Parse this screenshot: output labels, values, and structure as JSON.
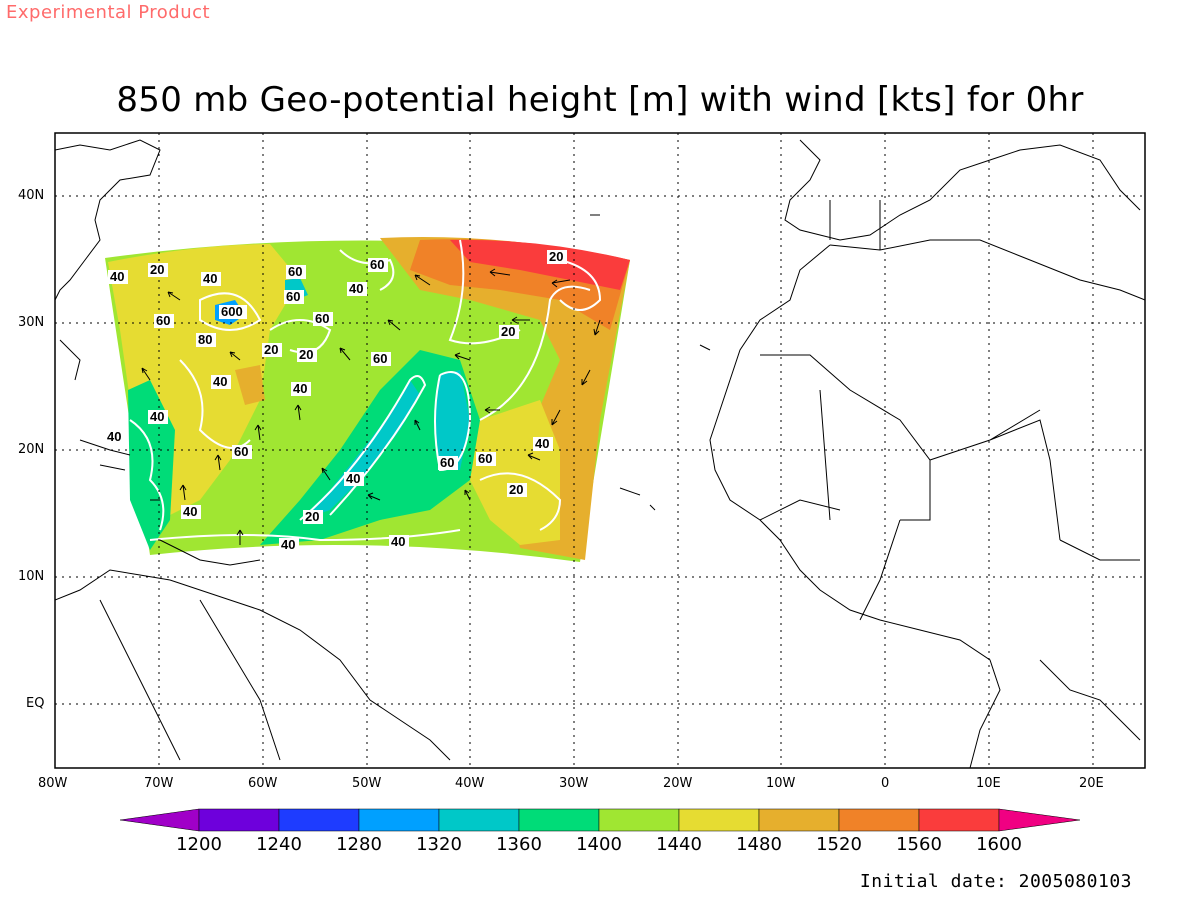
{
  "header": {
    "banner": "Experimental Product",
    "title": "850 mb Geo-potential height [m] with wind [kts] for 0hr"
  },
  "map": {
    "x_axis_labels": [
      "80W",
      "70W",
      "60W",
      "50W",
      "40W",
      "30W",
      "20W",
      "10W",
      "0",
      "10E",
      "20E"
    ],
    "y_axis_labels": [
      "40N",
      "30N",
      "20N",
      "10N",
      "EQ"
    ],
    "contour_labels": [
      "40",
      "20",
      "40",
      "60",
      "60",
      "40",
      "20",
      "60",
      "600",
      "60",
      "80",
      "20",
      "20",
      "60",
      "40",
      "40",
      "40",
      "60",
      "40",
      "60",
      "60",
      "40",
      "20",
      "40",
      "20",
      "40",
      "40",
      "20",
      "60",
      "40"
    ],
    "colors": {
      "c1200": "#a000c8",
      "c1240": "#6e00dc",
      "c1280": "#1e3cff",
      "c1320": "#00a0ff",
      "c1360": "#00c8c8",
      "c1400": "#00dc78",
      "c1440": "#a0e632",
      "c1480": "#e6dc32",
      "c1520": "#e6af2d",
      "c1560": "#f08228",
      "c1600": "#fa3c3c",
      "c_over": "#f00082"
    }
  },
  "colorbar": {
    "labels": [
      "1200",
      "1240",
      "1280",
      "1320",
      "1360",
      "1400",
      "1440",
      "1480",
      "1520",
      "1560",
      "1600"
    ]
  },
  "footer": {
    "initial_date": "Initial date: 2005080103"
  }
}
